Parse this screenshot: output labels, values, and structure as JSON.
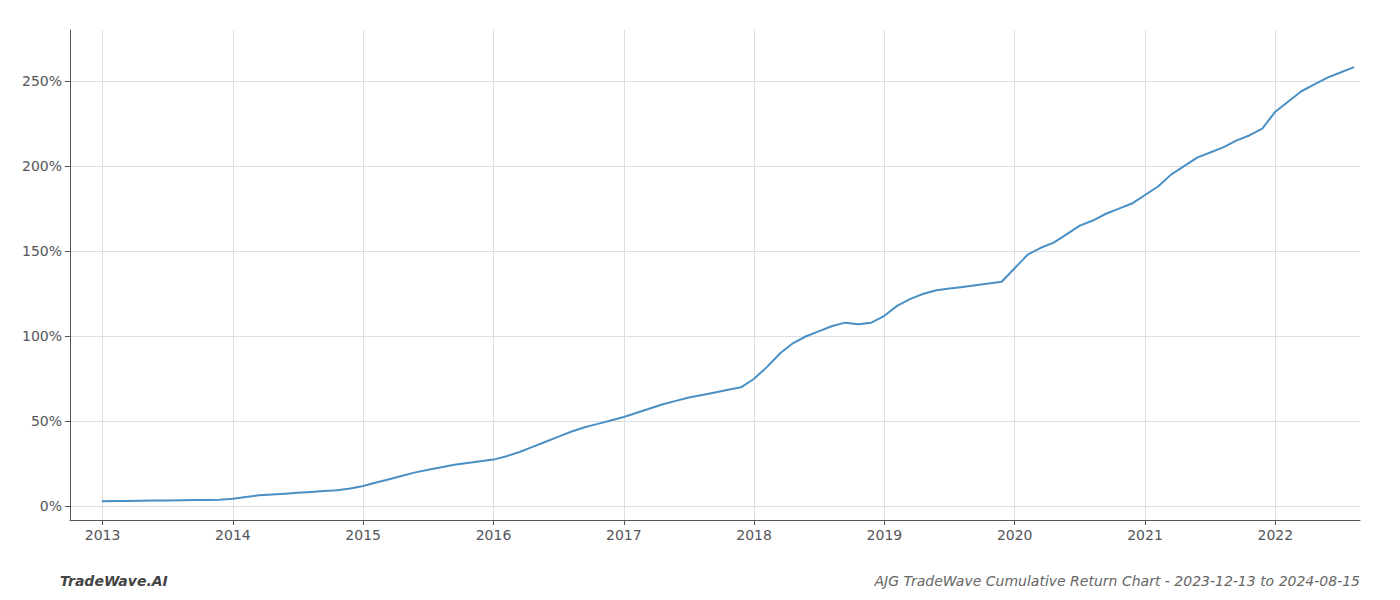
{
  "chart_data": {
    "type": "line",
    "x": [
      2013.0,
      2013.1,
      2013.2,
      2013.3,
      2013.4,
      2013.5,
      2013.6,
      2013.7,
      2013.8,
      2013.9,
      2014.0,
      2014.1,
      2014.2,
      2014.3,
      2014.4,
      2014.5,
      2014.6,
      2014.7,
      2014.8,
      2014.9,
      2015.0,
      2015.1,
      2015.2,
      2015.3,
      2015.4,
      2015.5,
      2015.6,
      2015.7,
      2015.8,
      2015.9,
      2016.0,
      2016.1,
      2016.2,
      2016.3,
      2016.4,
      2016.5,
      2016.6,
      2016.7,
      2016.8,
      2016.9,
      2017.0,
      2017.1,
      2017.2,
      2017.3,
      2017.4,
      2017.5,
      2017.6,
      2017.7,
      2017.8,
      2017.9,
      2018.0,
      2018.1,
      2018.2,
      2018.3,
      2018.4,
      2018.5,
      2018.6,
      2018.7,
      2018.8,
      2018.9,
      2019.0,
      2019.1,
      2019.2,
      2019.3,
      2019.4,
      2019.5,
      2019.6,
      2019.7,
      2019.8,
      2019.9,
      2020.0,
      2020.1,
      2020.2,
      2020.3,
      2020.4,
      2020.5,
      2020.6,
      2020.7,
      2020.8,
      2020.9,
      2021.0,
      2021.1,
      2021.2,
      2021.3,
      2021.4,
      2021.5,
      2021.6,
      2021.7,
      2021.8,
      2021.9,
      2022.0,
      2022.1,
      2022.2,
      2022.3,
      2022.4,
      2022.5,
      2022.6
    ],
    "values": [
      3.0,
      3.1,
      3.2,
      3.3,
      3.4,
      3.5,
      3.6,
      3.7,
      3.8,
      3.9,
      4.5,
      5.5,
      6.5,
      7.0,
      7.5,
      8.0,
      8.5,
      9.0,
      9.5,
      10.5,
      12.0,
      14.0,
      16.0,
      18.0,
      20.0,
      21.5,
      23.0,
      24.5,
      25.5,
      26.5,
      27.5,
      29.5,
      32.0,
      35.0,
      38.0,
      41.0,
      44.0,
      46.5,
      48.5,
      50.5,
      52.5,
      55.0,
      57.5,
      60.0,
      62.0,
      64.0,
      65.5,
      67.0,
      68.5,
      70.0,
      75.0,
      82.0,
      90.0,
      96.0,
      100.0,
      103.0,
      106.0,
      108.0,
      107.0,
      108.0,
      112.0,
      118.0,
      122.0,
      125.0,
      127.0,
      128.0,
      129.0,
      130.0,
      131.0,
      132.0,
      140.0,
      148.0,
      152.0,
      155.0,
      160.0,
      165.0,
      168.0,
      172.0,
      175.0,
      178.0,
      183.0,
      188.0,
      195.0,
      200.0,
      205.0,
      208.0,
      211.0,
      215.0,
      218.0,
      222.0,
      232.0,
      238.0,
      244.0,
      248.0,
      252.0,
      255.0,
      258.0
    ],
    "color": "#4a90c4",
    "xlim": [
      2012.75,
      2022.65
    ],
    "ylim": [
      -8,
      280
    ],
    "xticks": [
      2013,
      2014,
      2015,
      2016,
      2017,
      2018,
      2019,
      2020,
      2021,
      2022
    ],
    "yticks": [
      {
        "value": 0,
        "label": "0%"
      },
      {
        "value": 50,
        "label": "50%"
      },
      {
        "value": 100,
        "label": "100%"
      },
      {
        "value": 150,
        "label": "150%"
      },
      {
        "value": 200,
        "label": "200%"
      },
      {
        "value": 250,
        "label": "250%"
      }
    ],
    "grid": true,
    "annotations": [
      "TradeWave.AI",
      "AJG TradeWave Cumulative Return Chart - 2023-12-13 to 2024-08-15"
    ]
  }
}
